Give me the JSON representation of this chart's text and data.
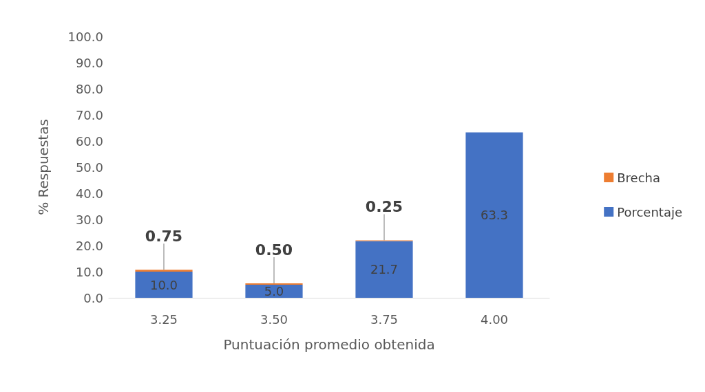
{
  "chart_data": {
    "type": "bar",
    "stacked": true,
    "xlabel": "Puntuación promedio obtenida",
    "ylabel": "% Respuestas",
    "categories": [
      "3.25",
      "3.50",
      "3.75",
      "4.00"
    ],
    "series": [
      {
        "name": "Porcentaje",
        "color": "#4472c4",
        "values": [
          10.0,
          5.0,
          21.7,
          63.3
        ],
        "value_labels": [
          "10.0",
          "5.0",
          "21.7",
          "63.3"
        ]
      },
      {
        "name": "Brecha",
        "color": "#ed7d31",
        "values": [
          0.75,
          0.5,
          0.25,
          null
        ],
        "value_labels": [
          "0.75",
          "0.50",
          "0.25",
          null
        ]
      }
    ],
    "ylim": [
      0,
      100
    ],
    "yticks": [
      {
        "value": 0,
        "label": "0.0"
      },
      {
        "value": 10,
        "label": "10.0"
      },
      {
        "value": 20,
        "label": "20.0"
      },
      {
        "value": 30,
        "label": "30.0"
      },
      {
        "value": 40,
        "label": "40.0"
      },
      {
        "value": 50,
        "label": "50.0"
      },
      {
        "value": 60,
        "label": "60.0"
      },
      {
        "value": 70,
        "label": "70.0"
      },
      {
        "value": 80,
        "label": "80.0"
      },
      {
        "value": 90,
        "label": "90.0"
      },
      {
        "value": 100,
        "label": "100.0"
      }
    ],
    "grid": false,
    "legend": "right"
  }
}
